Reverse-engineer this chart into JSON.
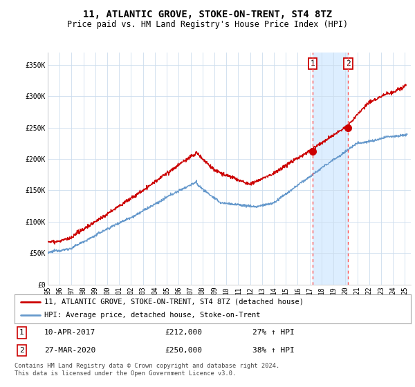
{
  "title": "11, ATLANTIC GROVE, STOKE-ON-TRENT, ST4 8TZ",
  "subtitle": "Price paid vs. HM Land Registry's House Price Index (HPI)",
  "xlim_start": 1995.0,
  "xlim_end": 2025.5,
  "ylim": [
    0,
    370000
  ],
  "yticks": [
    0,
    50000,
    100000,
    150000,
    200000,
    250000,
    300000,
    350000
  ],
  "ytick_labels": [
    "£0",
    "£50K",
    "£100K",
    "£150K",
    "£200K",
    "£250K",
    "£300K",
    "£350K"
  ],
  "xticks": [
    1995,
    1996,
    1997,
    1998,
    1999,
    2000,
    2001,
    2002,
    2003,
    2004,
    2005,
    2006,
    2007,
    2008,
    2009,
    2010,
    2011,
    2012,
    2013,
    2014,
    2015,
    2016,
    2017,
    2018,
    2019,
    2020,
    2021,
    2022,
    2023,
    2024,
    2025
  ],
  "xtick_labels": [
    "95",
    "96",
    "97",
    "98",
    "99",
    "00",
    "01",
    "02",
    "03",
    "04",
    "05",
    "06",
    "07",
    "08",
    "09",
    "10",
    "11",
    "12",
    "13",
    "14",
    "15",
    "16",
    "17",
    "18",
    "19",
    "20",
    "21",
    "22",
    "23",
    "24",
    "25"
  ],
  "sale1_x": 2017.27,
  "sale1_y": 212000,
  "sale1_label": "1",
  "sale2_x": 2020.24,
  "sale2_y": 250000,
  "sale2_label": "2",
  "hpi_color": "#6699cc",
  "price_color": "#cc0000",
  "sale_marker_color": "#cc0000",
  "vline_color": "#ff5555",
  "shade_color": "#ddeeff",
  "background_color": "#ffffff",
  "grid_color": "#ccddee",
  "legend_label_price": "11, ATLANTIC GROVE, STOKE-ON-TRENT, ST4 8TZ (detached house)",
  "legend_label_hpi": "HPI: Average price, detached house, Stoke-on-Trent",
  "info1_num": "1",
  "info1_date": "10-APR-2017",
  "info1_price": "£212,000",
  "info1_hpi": "27% ↑ HPI",
  "info2_num": "2",
  "info2_date": "27-MAR-2020",
  "info2_price": "£250,000",
  "info2_hpi": "38% ↑ HPI",
  "footer": "Contains HM Land Registry data © Crown copyright and database right 2024.\nThis data is licensed under the Open Government Licence v3.0.",
  "title_fontsize": 10,
  "subtitle_fontsize": 8.5,
  "tick_fontsize": 7,
  "legend_fontsize": 7.5,
  "info_fontsize": 8
}
